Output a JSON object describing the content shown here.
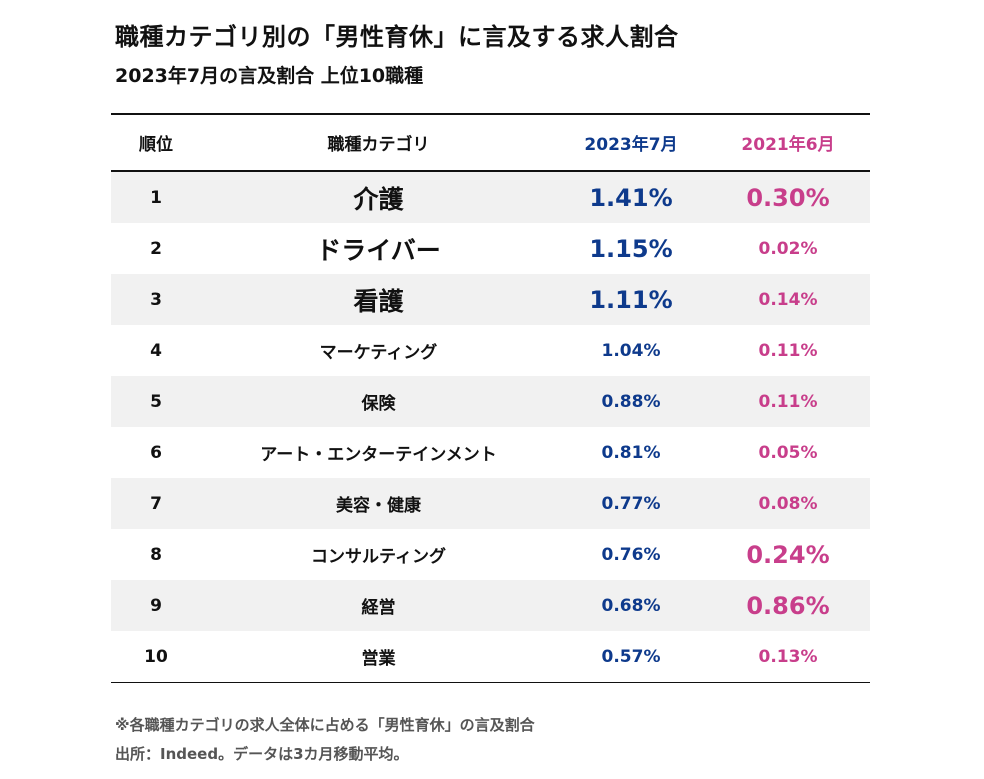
{
  "title": "職種カテゴリ別の「男性育休」に言及する求人割合",
  "subtitle": "2023年7月の言及割合 上位10職種",
  "table": {
    "headers": {
      "rank": "順位",
      "category": "職種カテゴリ",
      "col_a": "2023年7月",
      "col_b": "2021年6月"
    },
    "rows": [
      {
        "rank": "1",
        "category": "介護",
        "a": "1.41%",
        "b": "0.30%"
      },
      {
        "rank": "2",
        "category": "ドライバー",
        "a": "1.15%",
        "b": "0.02%"
      },
      {
        "rank": "3",
        "category": "看護",
        "a": "1.11%",
        "b": "0.14%"
      },
      {
        "rank": "4",
        "category": "マーケティング",
        "a": "1.04%",
        "b": "0.11%"
      },
      {
        "rank": "5",
        "category": "保険",
        "a": "0.88%",
        "b": "0.11%"
      },
      {
        "rank": "6",
        "category": "アート・エンターテインメント",
        "a": "0.81%",
        "b": "0.05%"
      },
      {
        "rank": "7",
        "category": "美容・健康",
        "a": "0.77%",
        "b": "0.08%"
      },
      {
        "rank": "8",
        "category": "コンサルティング",
        "a": "0.76%",
        "b": "0.24%"
      },
      {
        "rank": "9",
        "category": "経営",
        "a": "0.68%",
        "b": "0.86%"
      },
      {
        "rank": "10",
        "category": "営業",
        "a": "0.57%",
        "b": "0.13%"
      }
    ]
  },
  "notes": {
    "footnote": "※各職種カテゴリの求人全体に占める「男性育休」の言及割合",
    "source": "出所：Indeed。データは3カ月移動平均。"
  },
  "colors": {
    "col_a": "#0e3a8c",
    "col_b": "#c83e8b"
  },
  "chart_data": {
    "type": "table",
    "title": "職種カテゴリ別の「男性育休」に言及する求人割合",
    "subtitle": "2023年7月の言及割合 上位10職種",
    "columns": [
      "順位",
      "職種カテゴリ",
      "2023年7月",
      "2021年6月"
    ],
    "categories": [
      "介護",
      "ドライバー",
      "看護",
      "マーケティング",
      "保険",
      "アート・エンターテインメント",
      "美容・健康",
      "コンサルティング",
      "経営",
      "営業"
    ],
    "series": [
      {
        "name": "2023年7月",
        "values": [
          1.41,
          1.15,
          1.11,
          1.04,
          0.88,
          0.81,
          0.77,
          0.76,
          0.68,
          0.57
        ]
      },
      {
        "name": "2021年6月",
        "values": [
          0.3,
          0.02,
          0.14,
          0.11,
          0.11,
          0.05,
          0.08,
          0.24,
          0.86,
          0.13
        ]
      }
    ],
    "unit": "%"
  }
}
